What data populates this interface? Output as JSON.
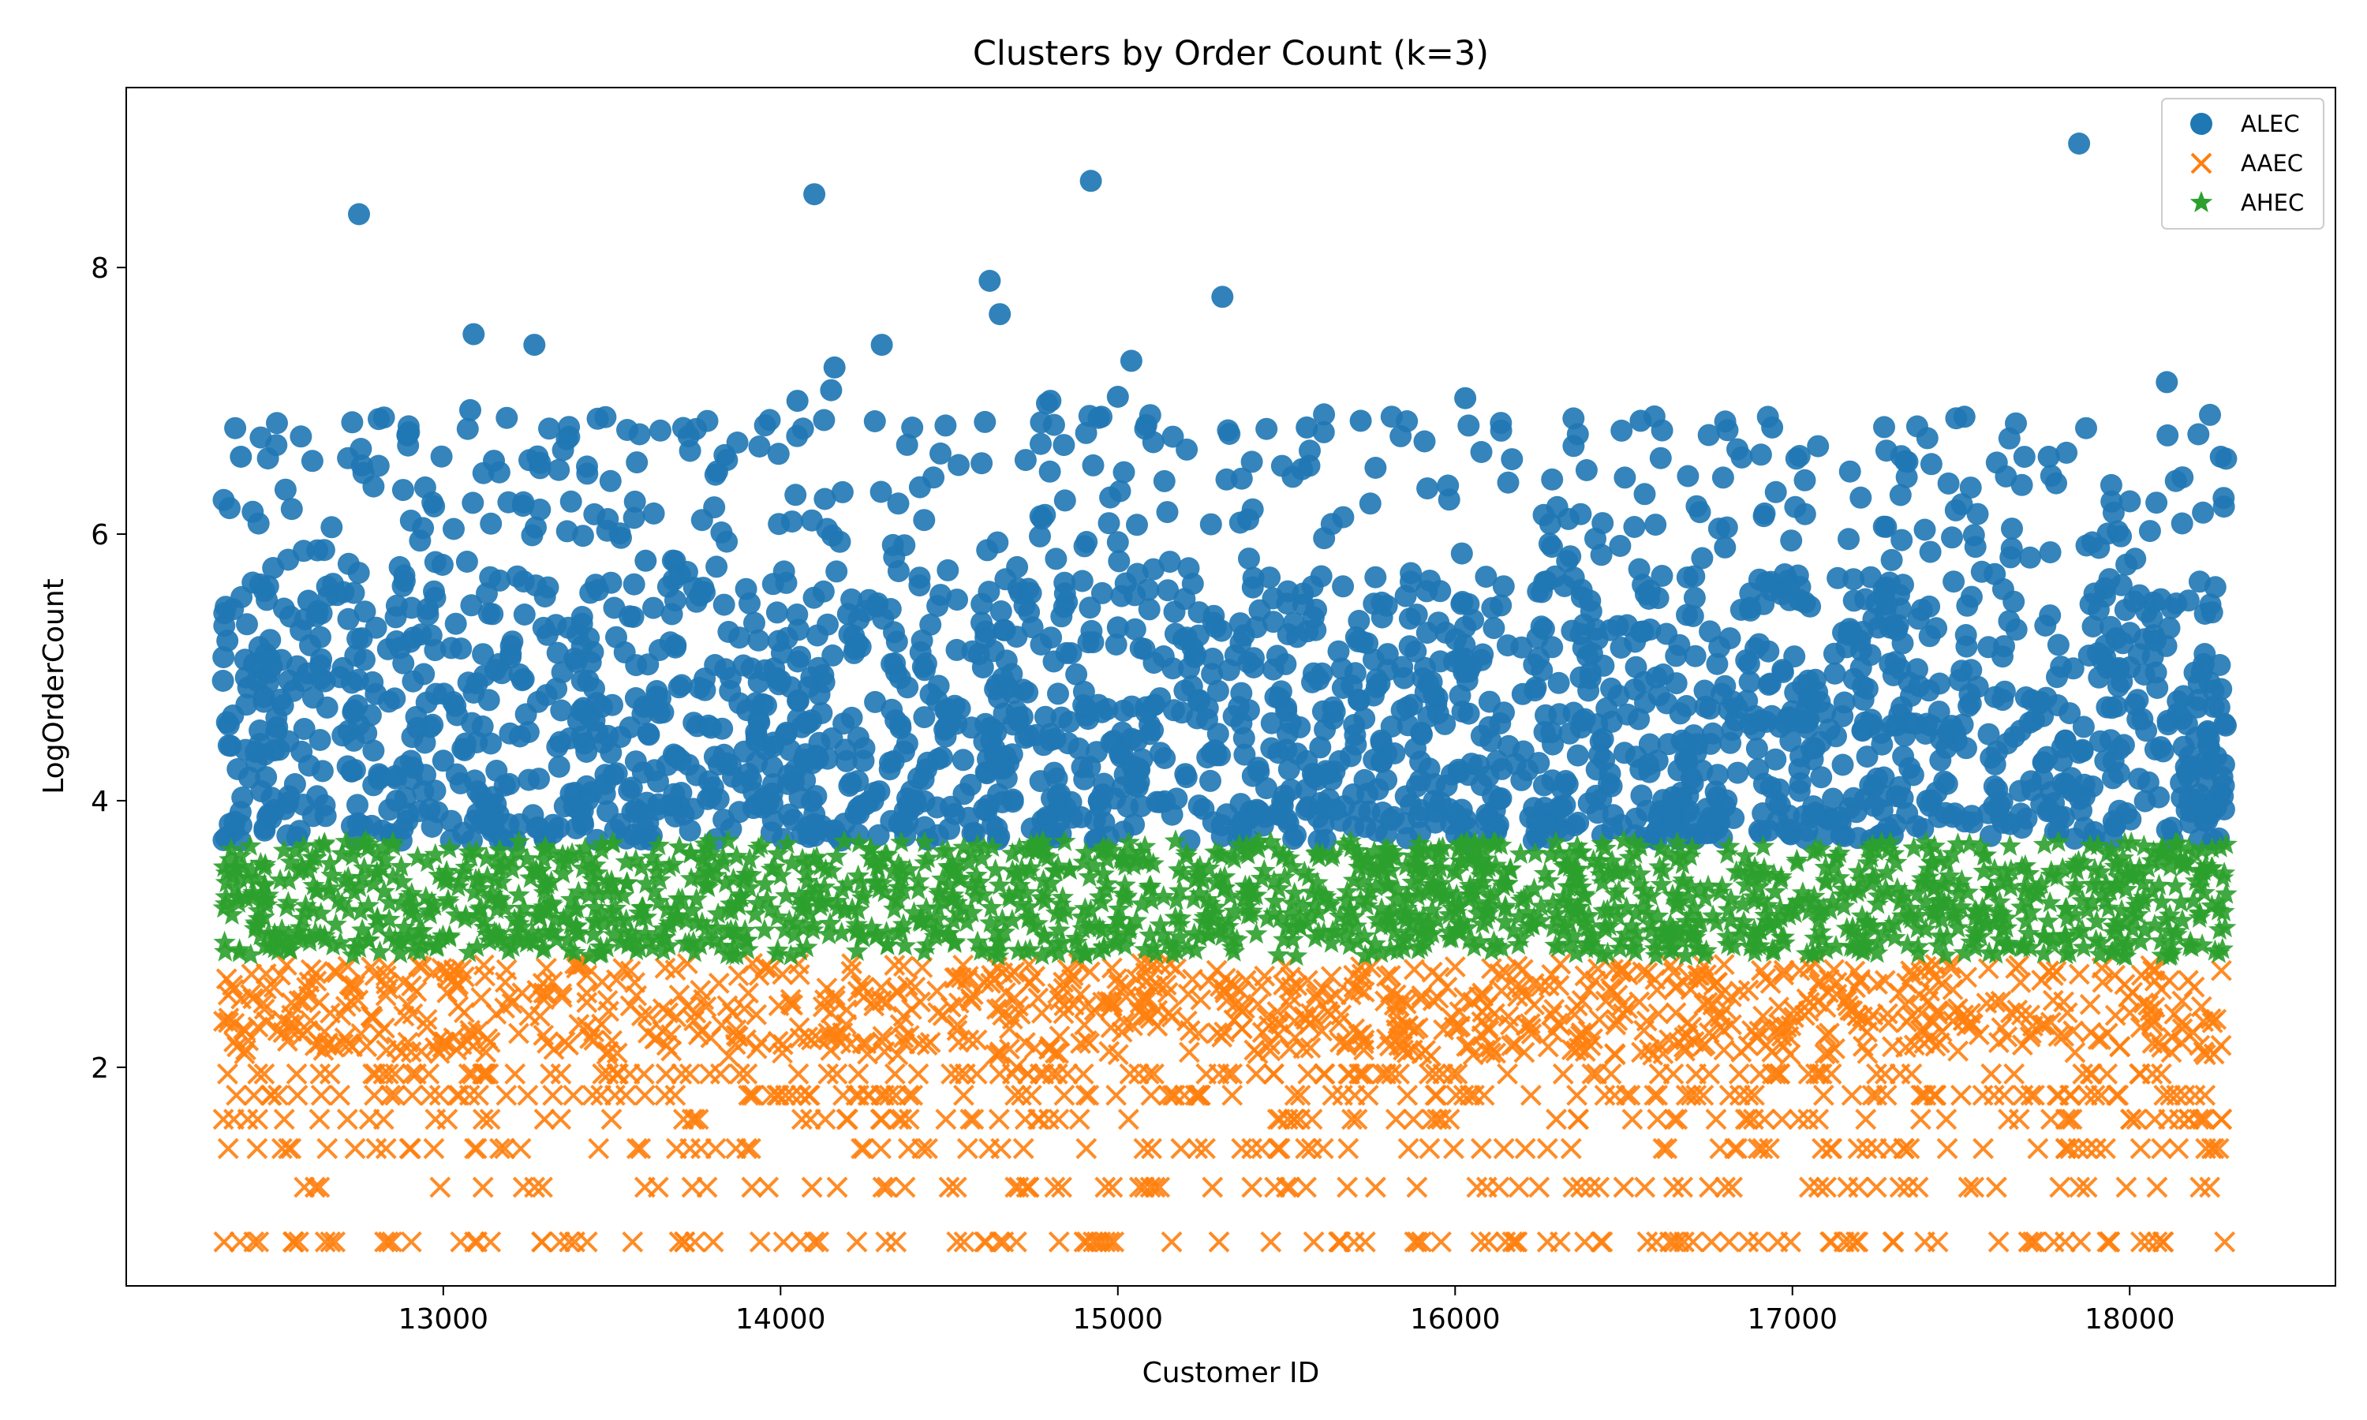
{
  "chart_data": {
    "type": "scatter",
    "title": "Clusters by Order Count (k=3)",
    "xlabel": "Customer ID",
    "ylabel": "LogOrderCount",
    "xlim": [
      12060,
      18610
    ],
    "ylim": [
      0.36,
      9.35
    ],
    "xticks": [
      13000,
      14000,
      15000,
      16000,
      17000,
      18000
    ],
    "xtick_labels": [
      "13000",
      "14000",
      "15000",
      "16000",
      "17000",
      "18000"
    ],
    "yticks": [
      2,
      4,
      6,
      8
    ],
    "ytick_labels": [
      "2",
      "4",
      "6",
      "8"
    ],
    "grid": false,
    "legend_position": "top-right",
    "series": [
      {
        "name": "ALEC",
        "marker": "circle",
        "color": "#1f77b4",
        "summary": "dense band of points with LogOrderCount between ~3.7 and ~6.9 across Customer IDs 12346–18287, plus sparse outliers up to ~8.9",
        "points": [
          [
            12360,
            5.2
          ],
          [
            12400,
            6.58
          ],
          [
            12750,
            8.4
          ],
          [
            13090,
            7.5
          ],
          [
            13080,
            6.93
          ],
          [
            13270,
            7.42
          ],
          [
            14100,
            8.55
          ],
          [
            14050,
            7.0
          ],
          [
            14160,
            7.25
          ],
          [
            14150,
            7.08
          ],
          [
            14300,
            7.42
          ],
          [
            14620,
            7.9
          ],
          [
            14650,
            7.65
          ],
          [
            14920,
            8.65
          ],
          [
            14800,
            7.0
          ],
          [
            14790,
            6.98
          ],
          [
            15040,
            7.3
          ],
          [
            15000,
            7.03
          ],
          [
            15310,
            7.78
          ],
          [
            15560,
            6.8
          ],
          [
            15720,
            6.85
          ],
          [
            16030,
            7.02
          ],
          [
            16550,
            6.85
          ],
          [
            16940,
            6.8
          ],
          [
            17510,
            6.88
          ],
          [
            17850,
            8.93
          ],
          [
            18110,
            7.14
          ],
          [
            18270,
            6.58
          ],
          [
            17760,
            6.58
          ],
          [
            13150,
            6.55
          ],
          [
            12600,
            5.5
          ],
          [
            12800,
            4.8
          ],
          [
            13000,
            4.3
          ],
          [
            13200,
            5.1
          ],
          [
            13400,
            4.6
          ],
          [
            13600,
            5.8
          ],
          [
            13800,
            4.1
          ],
          [
            14000,
            4.9
          ],
          [
            14200,
            5.4
          ],
          [
            14400,
            4.0
          ],
          [
            14600,
            5.0
          ],
          [
            14800,
            4.5
          ],
          [
            15000,
            5.3
          ],
          [
            15200,
            4.2
          ],
          [
            15400,
            5.6
          ],
          [
            15600,
            4.4
          ],
          [
            15800,
            5.1
          ],
          [
            16000,
            3.9
          ],
          [
            16200,
            4.8
          ],
          [
            16400,
            5.5
          ],
          [
            16600,
            4.3
          ],
          [
            16800,
            5.9
          ],
          [
            17000,
            4.6
          ],
          [
            17200,
            5.2
          ],
          [
            17400,
            4.0
          ],
          [
            17600,
            5.7
          ],
          [
            17800,
            4.4
          ],
          [
            18000,
            5.0
          ],
          [
            18200,
            4.7
          ],
          [
            18280,
            4.27
          ]
        ]
      },
      {
        "name": "AAEC",
        "marker": "x",
        "color": "#ff7f0e",
        "summary": "points with LogOrderCount between ~0.69 and ~2.8; dense near 1.8–2.8, sparser discrete rows at ~0.69, ~1.1, ~1.39, ~1.61",
        "points": [
          [
            12350,
            0.69
          ],
          [
            12620,
            1.1
          ],
          [
            12900,
            1.39
          ],
          [
            13100,
            0.69
          ],
          [
            13300,
            1.61
          ],
          [
            13500,
            2.2
          ],
          [
            13700,
            0.69
          ],
          [
            13900,
            1.39
          ],
          [
            14100,
            0.69
          ],
          [
            14300,
            2.5
          ],
          [
            14500,
            1.1
          ],
          [
            14700,
            2.0
          ],
          [
            14900,
            0.69
          ],
          [
            15100,
            1.39
          ],
          [
            15300,
            0.69
          ],
          [
            15500,
            1.1
          ],
          [
            15700,
            2.6
          ],
          [
            15900,
            0.69
          ],
          [
            16100,
            0.69
          ],
          [
            16300,
            1.61
          ],
          [
            16500,
            1.1
          ],
          [
            16700,
            2.3
          ],
          [
            16900,
            0.69
          ],
          [
            17100,
            1.1
          ],
          [
            17300,
            0.69
          ],
          [
            17500,
            1.79
          ],
          [
            17700,
            0.69
          ],
          [
            17900,
            1.39
          ],
          [
            18100,
            0.69
          ],
          [
            18250,
            2.1
          ]
        ]
      },
      {
        "name": "AHEC",
        "marker": "star",
        "color": "#2ca02c",
        "summary": "dense band of points with LogOrderCount between ~2.83 and ~3.7 across all Customer IDs",
        "points": [
          [
            12350,
            3.5
          ],
          [
            12500,
            3.0
          ],
          [
            12700,
            3.6
          ],
          [
            12900,
            3.2
          ],
          [
            13100,
            2.9
          ],
          [
            13300,
            3.4
          ],
          [
            13500,
            3.1
          ],
          [
            13700,
            3.65
          ],
          [
            13900,
            2.95
          ],
          [
            14100,
            3.3
          ],
          [
            14300,
            3.55
          ],
          [
            14500,
            3.0
          ],
          [
            14700,
            3.45
          ],
          [
            14900,
            2.85
          ],
          [
            15100,
            3.25
          ],
          [
            15300,
            3.6
          ],
          [
            15500,
            3.05
          ],
          [
            15700,
            3.4
          ],
          [
            15900,
            2.9
          ],
          [
            16100,
            3.5
          ],
          [
            16300,
            3.15
          ],
          [
            16500,
            3.7
          ],
          [
            16700,
            3.0
          ],
          [
            16900,
            3.35
          ],
          [
            17100,
            2.88
          ],
          [
            17300,
            3.6
          ],
          [
            17500,
            3.2
          ],
          [
            17700,
            3.45
          ],
          [
            17900,
            2.95
          ],
          [
            18150,
            3.55
          ]
        ]
      }
    ]
  }
}
